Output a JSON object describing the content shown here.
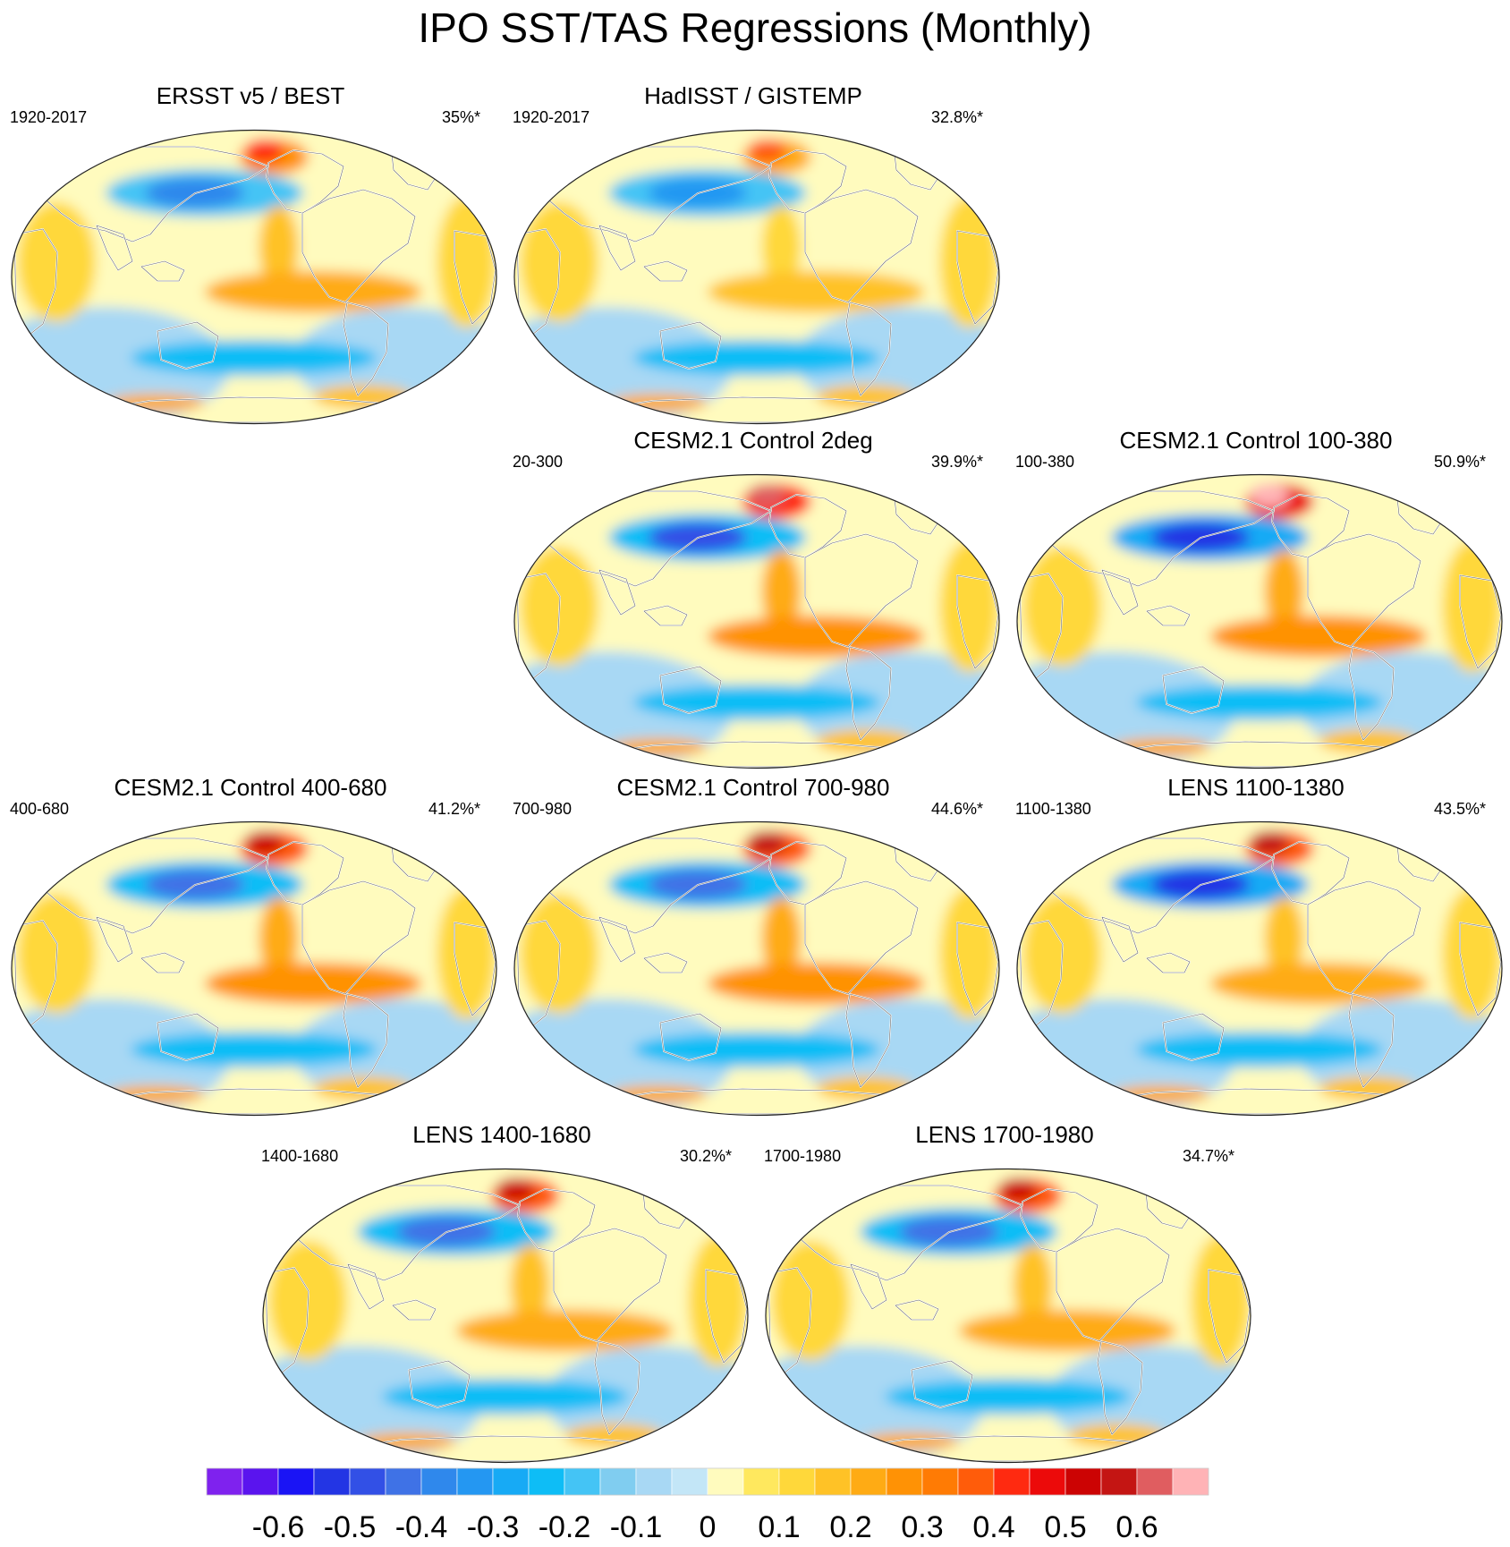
{
  "page": {
    "title": "IPO SST/TAS Regressions (Monthly)"
  },
  "chart_data": {
    "type": "heatmap",
    "title": "IPO SST/TAS Regressions (Monthly)",
    "projection": "global map (Robinson-like), Pacific-centered",
    "panels": [
      {
        "title": "ERSST v5 / BEST",
        "period": "1920-2017",
        "variance_explained": "35%*",
        "variance_pct": 35.0,
        "hotspot_alaska": 0.4,
        "npac_min": -0.4,
        "trop_pac_max": 0.2
      },
      {
        "title": "HadISST / GISTEMP",
        "period": "1920-2017",
        "variance_explained": "32.8%*",
        "variance_pct": 32.8,
        "hotspot_alaska": 0.35,
        "npac_min": -0.35,
        "trop_pac_max": 0.15
      },
      {
        "title": "CESM2.1 Control 2deg",
        "period": "20-300",
        "variance_explained": "39.9%*",
        "variance_pct": 39.9,
        "hotspot_alaska": 0.6,
        "npac_min": -0.5,
        "trop_pac_max": 0.25
      },
      {
        "title": "CESM2.1 Control 100-380",
        "period": "100-380",
        "variance_explained": "50.9%*",
        "variance_pct": 50.9,
        "hotspot_alaska": 0.65,
        "npac_min": -0.55,
        "trop_pac_max": 0.25
      },
      {
        "title": "CESM2.1 Control 400-680",
        "period": "400-680",
        "variance_explained": "41.2%*",
        "variance_pct": 41.2,
        "hotspot_alaska": 0.5,
        "npac_min": -0.45,
        "trop_pac_max": 0.25
      },
      {
        "title": "CESM2.1 Control 700-980",
        "period": "700-980",
        "variance_explained": "44.6%*",
        "variance_pct": 44.6,
        "hotspot_alaska": 0.55,
        "npac_min": -0.45,
        "trop_pac_max": 0.25
      },
      {
        "title": "LENS 1100-1380",
        "period": "1100-1380",
        "variance_explained": "43.5%*",
        "variance_pct": 43.5,
        "hotspot_alaska": 0.55,
        "npac_min": -0.55,
        "trop_pac_max": 0.2
      },
      {
        "title": "LENS 1400-1680",
        "period": "1400-1680",
        "variance_explained": "30.2%*",
        "variance_pct": 30.2,
        "hotspot_alaska": 0.5,
        "npac_min": -0.45,
        "trop_pac_max": 0.2
      },
      {
        "title": "LENS 1700-1980",
        "period": "1700-1980",
        "variance_explained": "34.7%*",
        "variance_pct": 34.7,
        "hotspot_alaska": 0.5,
        "npac_min": -0.45,
        "trop_pac_max": 0.2
      }
    ],
    "colorbar": {
      "levels": [
        -0.7,
        -0.65,
        -0.6,
        -0.55,
        -0.5,
        -0.45,
        -0.4,
        -0.35,
        -0.3,
        -0.25,
        -0.2,
        -0.15,
        -0.1,
        -0.05,
        0,
        0.05,
        0.1,
        0.15,
        0.2,
        0.25,
        0.3,
        0.35,
        0.4,
        0.45,
        0.5,
        0.55,
        0.6,
        0.65,
        0.7
      ],
      "colors": [
        "#7f22ee",
        "#5a14ee",
        "#1a14f5",
        "#2335e4",
        "#3250e6",
        "#3f72e6",
        "#2f88ec",
        "#2497f2",
        "#17aaf5",
        "#0ebdf6",
        "#44c4f5",
        "#80cdf0",
        "#a8d8f4",
        "#c3e6f7",
        "#fffbbe",
        "#ffe85e",
        "#ffd83a",
        "#ffc226",
        "#ffab14",
        "#ff9205",
        "#ff7b04",
        "#ff5c0a",
        "#ff2a10",
        "#ec0a0a",
        "#cc0303",
        "#c41513",
        "#e05d60",
        "#ffb3b6"
      ],
      "tick_values": [
        -0.6,
        -0.5,
        -0.4,
        -0.3,
        -0.2,
        -0.1,
        0,
        0.1,
        0.2,
        0.3,
        0.4,
        0.5,
        0.6
      ],
      "tick_labels": [
        "-0.6",
        "-0.5",
        "-0.4",
        "-0.3",
        "-0.2",
        "-0.1",
        "0",
        "0.1",
        "0.2",
        "0.3",
        "0.4",
        "0.5",
        "0.6"
      ]
    }
  }
}
